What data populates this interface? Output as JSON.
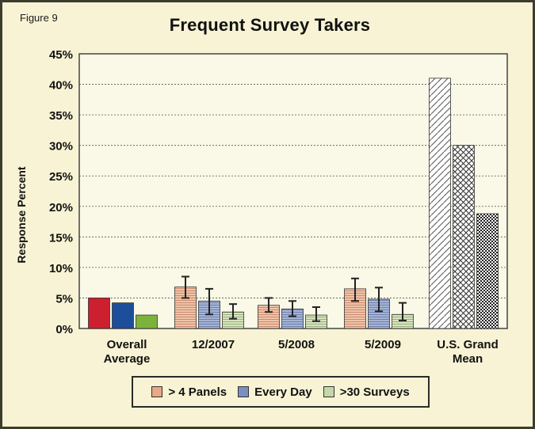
{
  "figure_label": "Figure 9",
  "chart_data": {
    "type": "bar",
    "title": "Frequent Survey Takers",
    "xlabel": "",
    "ylabel": "Response Percent",
    "ylim": [
      0,
      45
    ],
    "yticks": [
      "0%",
      "5%",
      "10%",
      "15%",
      "20%",
      "25%",
      "30%",
      "35%",
      "40%",
      "45%"
    ],
    "grid": true,
    "legend_position": "bottom",
    "categories": [
      [
        "Overall",
        "Average"
      ],
      [
        "12/2007"
      ],
      [
        "5/2008"
      ],
      [
        "5/2009"
      ],
      [
        "U.S. Grand",
        "Mean"
      ]
    ],
    "series": [
      {
        "name": "> 4 Panels",
        "legend_color": "#e8a886",
        "values": [
          5.0,
          6.8,
          3.8,
          6.5,
          41.0
        ],
        "error_low": [
          null,
          5.0,
          2.7,
          4.5,
          null
        ],
        "error_high": [
          null,
          8.5,
          5.0,
          8.2,
          null
        ]
      },
      {
        "name": "Every Day",
        "legend_color": "#7a8fc2",
        "values": [
          4.2,
          4.5,
          3.2,
          4.8,
          30.0
        ],
        "error_low": [
          null,
          2.3,
          2.0,
          2.8,
          null
        ],
        "error_high": [
          null,
          6.5,
          4.5,
          6.7,
          null
        ]
      },
      {
        "name": ">30 Surveys",
        "legend_color": "#c5d8a8",
        "values": [
          2.2,
          2.7,
          2.2,
          2.3,
          18.8
        ],
        "error_low": [
          null,
          1.6,
          1.2,
          1.3,
          null
        ],
        "error_high": [
          null,
          4.0,
          3.5,
          4.2,
          null
        ]
      }
    ],
    "styles": {
      "solid": [
        "#cc2030",
        "#1d4e9c",
        "#7bb23c"
      ],
      "striped_fill": [
        "#f0c4a9",
        "#a6b4d6",
        "#d8e4c0"
      ],
      "stripe_color": [
        "#c98b6f",
        "#6f80ad",
        "#9bb07e"
      ],
      "hatched_colors": [
        "#555555",
        "#333333",
        "#222222"
      ]
    }
  }
}
